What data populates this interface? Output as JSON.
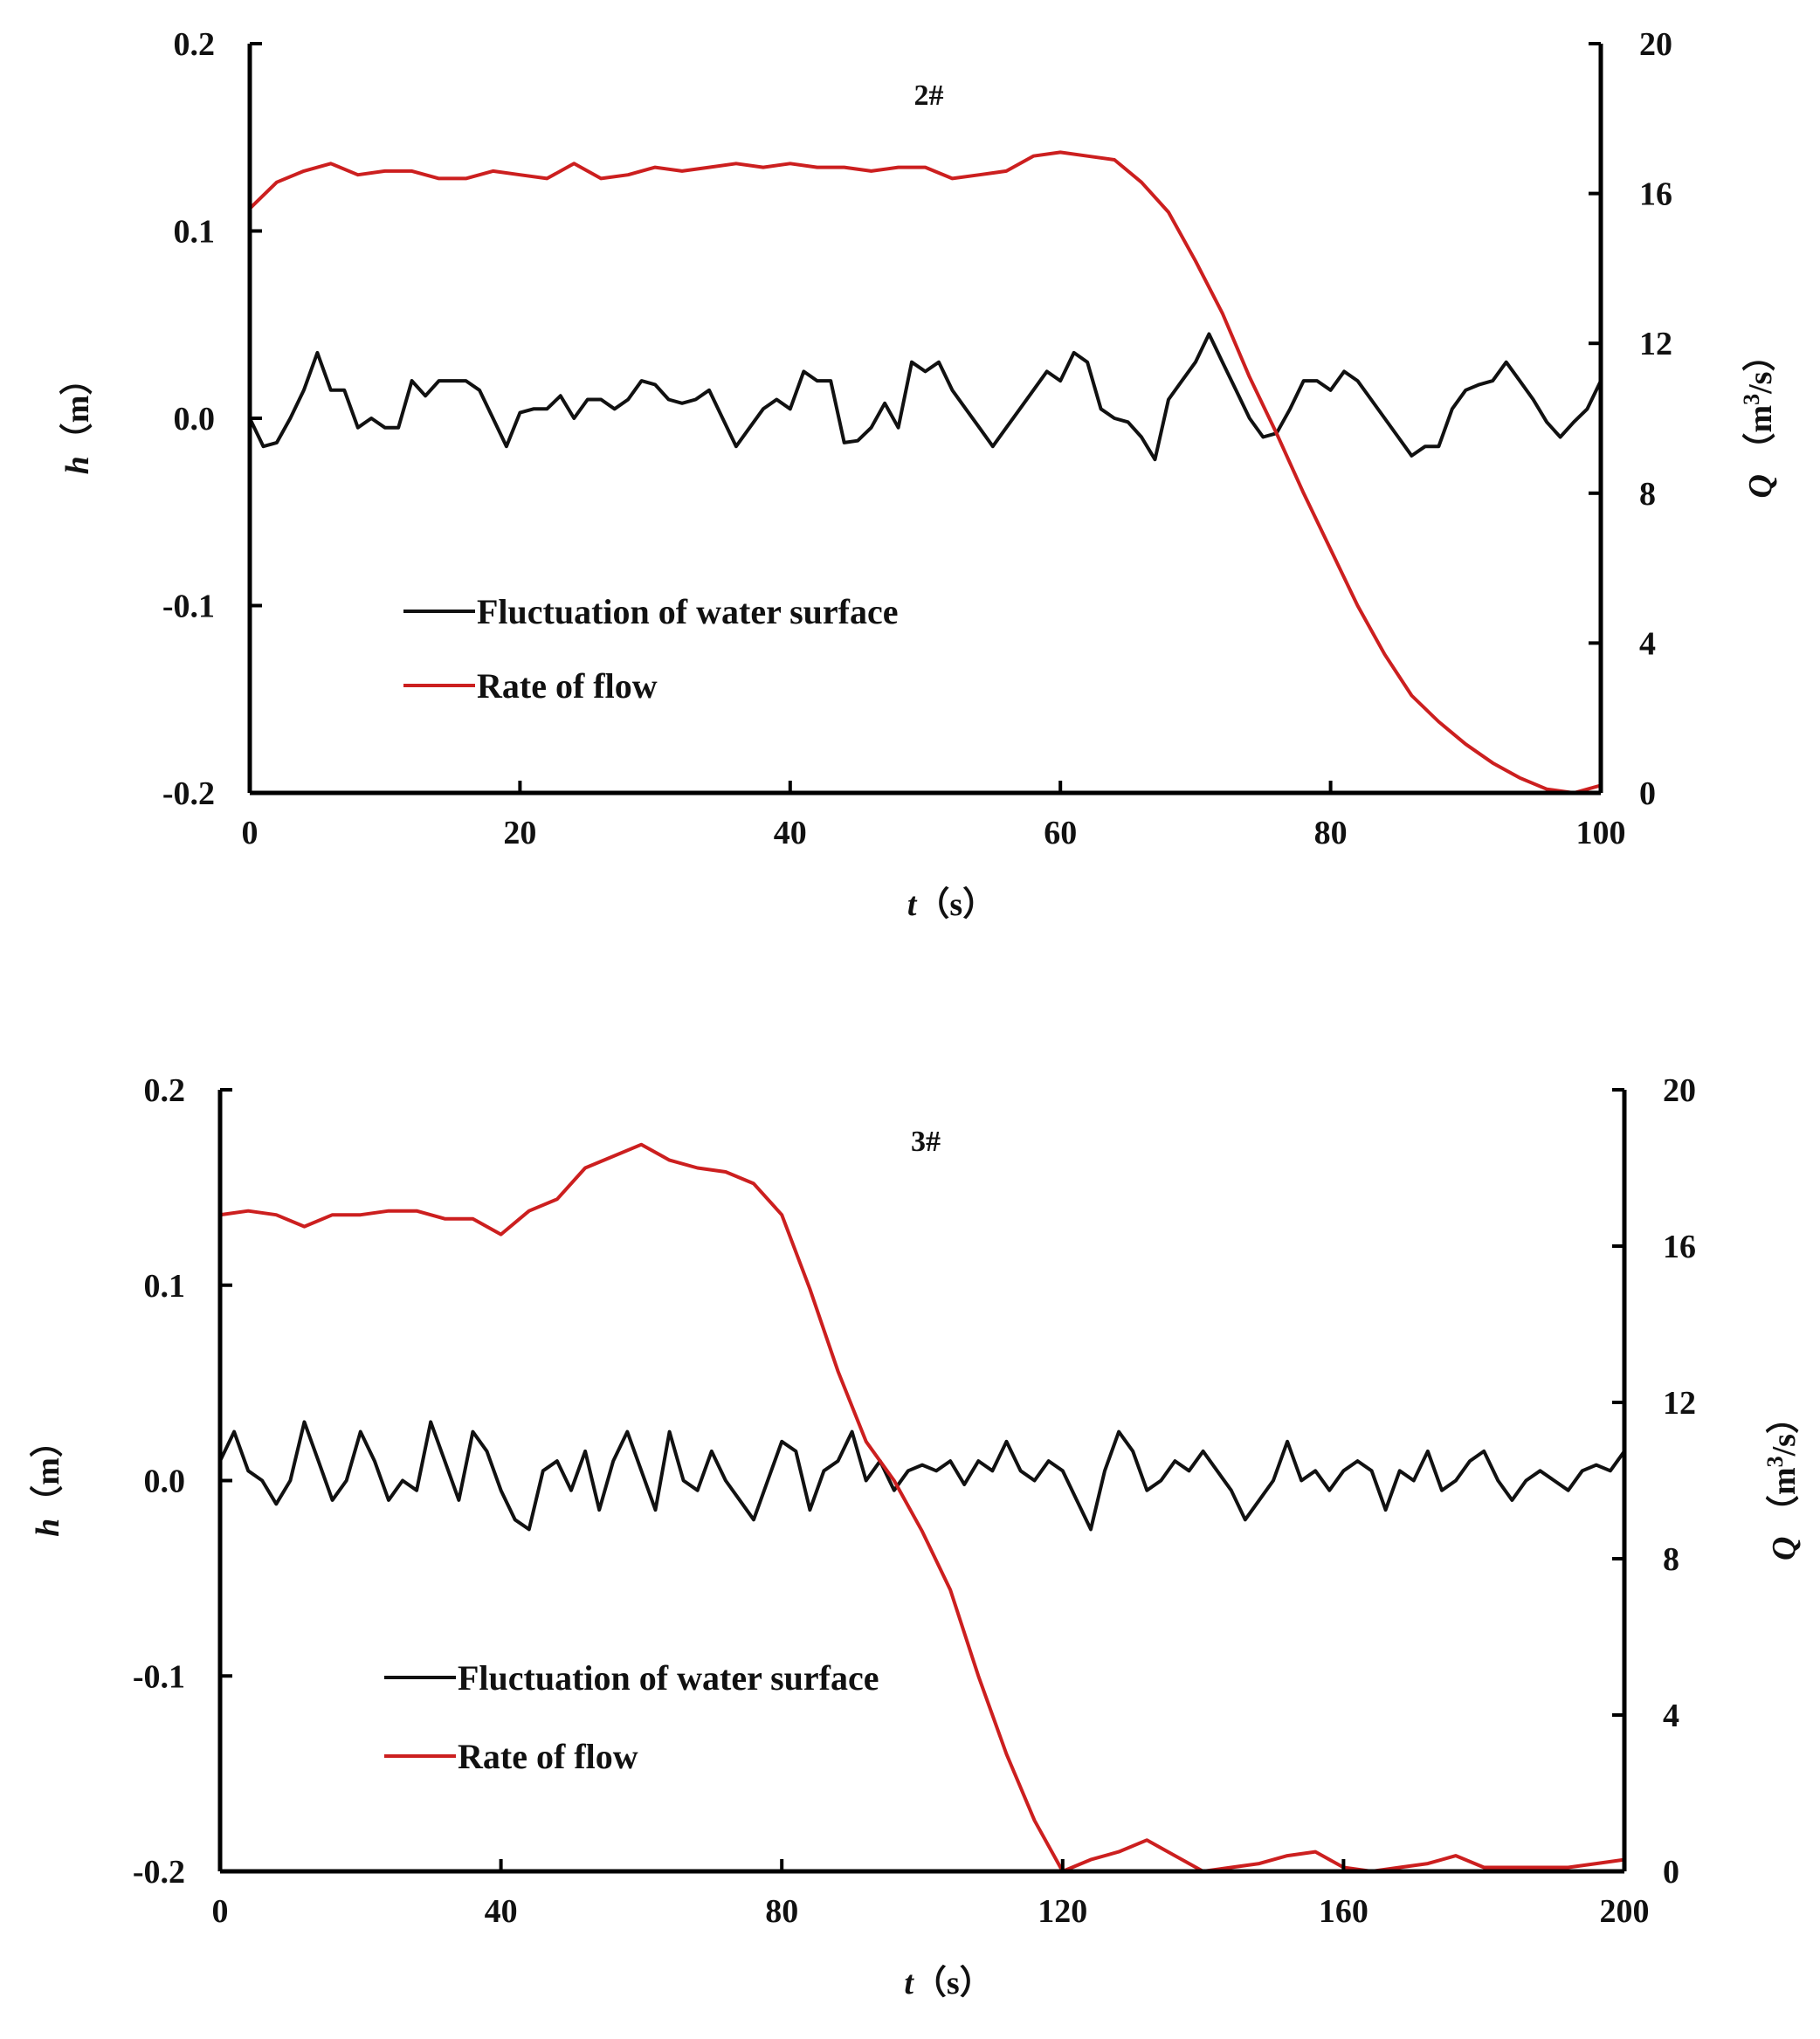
{
  "colors": {
    "water_surface": "#111111",
    "rate_of_flow": "#cc1f1f",
    "axis": "#000000"
  },
  "chart_data": [
    {
      "type": "line",
      "panel_label": "2#",
      "xlabel": {
        "var": "t",
        "unit": "（s）"
      },
      "ylabel_left": {
        "var": "h",
        "unit": "（m）"
      },
      "ylabel_right": {
        "var": "Q",
        "unit_pre": "（m",
        "unit_sup": "3",
        "unit_post": "/s）"
      },
      "xlim": [
        0,
        100
      ],
      "ylim_left": [
        -0.2,
        0.2
      ],
      "ylim_right": [
        0,
        20
      ],
      "xticks": [
        0,
        20,
        40,
        60,
        80,
        100
      ],
      "xtick_labels": [
        "0",
        "20",
        "40",
        "60",
        "80",
        "100"
      ],
      "yticks_left": [
        -0.2,
        -0.1,
        0.0,
        0.1,
        0.2
      ],
      "ytick_labels_left": [
        "-0.2",
        "-0.1",
        "0.0",
        "0.1",
        "0.2"
      ],
      "yticks_right": [
        0,
        4,
        8,
        12,
        16,
        20
      ],
      "ytick_labels_right": [
        "0",
        "4",
        "8",
        "12",
        "16",
        "20"
      ],
      "grid": false,
      "legend_placement": "lower-left",
      "series": [
        {
          "name": "Fluctuation of water surface",
          "axis": "left",
          "x": [
            0,
            1,
            2,
            3,
            4,
            5,
            6,
            7,
            8,
            9,
            10,
            11,
            12,
            13,
            14,
            15,
            16,
            17,
            18,
            19,
            20,
            21,
            22,
            23,
            24,
            25,
            26,
            27,
            28,
            29,
            30,
            31,
            32,
            33,
            34,
            35,
            36,
            37,
            38,
            39,
            40,
            41,
            42,
            43,
            44,
            45,
            46,
            47,
            48,
            49,
            50,
            51,
            52,
            53,
            54,
            55,
            56,
            57,
            58,
            59,
            60,
            61,
            62,
            63,
            64,
            65,
            66,
            67,
            68,
            69,
            70,
            71,
            72,
            73,
            74,
            75,
            76,
            77,
            78,
            79,
            80,
            81,
            82,
            83,
            84,
            85,
            86,
            87,
            88,
            89,
            90,
            91,
            92,
            93,
            94,
            95,
            96,
            97,
            98,
            99,
            100
          ],
          "values": [
            0.0,
            -0.015,
            -0.013,
            0.0,
            0.015,
            0.035,
            0.015,
            0.015,
            -0.005,
            0.0,
            -0.005,
            -0.005,
            0.02,
            0.012,
            0.02,
            0.02,
            0.02,
            0.015,
            0.0,
            -0.015,
            0.003,
            0.005,
            0.005,
            0.012,
            0.0,
            0.01,
            0.01,
            0.005,
            0.01,
            0.02,
            0.018,
            0.01,
            0.008,
            0.01,
            0.015,
            0.0,
            -0.015,
            -0.005,
            0.005,
            0.01,
            0.005,
            0.025,
            0.02,
            0.02,
            -0.013,
            -0.012,
            -0.005,
            0.008,
            -0.005,
            0.03,
            0.025,
            0.03,
            0.015,
            0.005,
            -0.005,
            -0.015,
            -0.005,
            0.005,
            0.015,
            0.025,
            0.02,
            0.035,
            0.03,
            0.005,
            0.0,
            -0.002,
            -0.01,
            -0.022,
            0.01,
            0.02,
            0.03,
            0.045,
            0.03,
            0.015,
            0.0,
            -0.01,
            -0.008,
            0.005,
            0.02,
            0.02,
            0.015,
            0.025,
            0.02,
            0.01,
            0.0,
            -0.01,
            -0.02,
            -0.015,
            -0.015,
            0.005,
            0.015,
            0.018,
            0.02,
            0.03,
            0.02,
            0.01,
            -0.002,
            -0.01,
            -0.002,
            0.005,
            0.02
          ]
        },
        {
          "name": "Rate of flow",
          "axis": "right",
          "x": [
            0,
            2,
            4,
            6,
            8,
            10,
            12,
            14,
            16,
            18,
            20,
            22,
            24,
            26,
            28,
            30,
            32,
            34,
            36,
            38,
            40,
            42,
            44,
            46,
            48,
            50,
            52,
            54,
            56,
            58,
            60,
            62,
            64,
            66,
            68,
            70,
            72,
            74,
            76,
            78,
            80,
            82,
            84,
            86,
            88,
            90,
            92,
            94,
            96,
            98,
            100
          ],
          "values": [
            15.6,
            16.3,
            16.6,
            16.8,
            16.5,
            16.6,
            16.6,
            16.4,
            16.4,
            16.6,
            16.5,
            16.4,
            16.8,
            16.4,
            16.5,
            16.7,
            16.6,
            16.7,
            16.8,
            16.7,
            16.8,
            16.7,
            16.7,
            16.6,
            16.7,
            16.7,
            16.4,
            16.5,
            16.6,
            17.0,
            17.1,
            17.0,
            16.9,
            16.3,
            15.5,
            14.2,
            12.8,
            11.1,
            9.6,
            8.0,
            6.5,
            5.0,
            3.7,
            2.6,
            1.9,
            1.3,
            0.8,
            0.4,
            0.1,
            0.0,
            0.2
          ]
        }
      ]
    },
    {
      "type": "line",
      "panel_label": "3#",
      "xlabel": {
        "var": "t",
        "unit": "（s）"
      },
      "ylabel_left": {
        "var": "h",
        "unit": "（m）"
      },
      "ylabel_right": {
        "var": "Q",
        "unit_pre": "（m",
        "unit_sup": "3",
        "unit_post": "/s）"
      },
      "xlim": [
        0,
        200
      ],
      "ylim_left": [
        -0.2,
        0.2
      ],
      "ylim_right": [
        0,
        20
      ],
      "xticks": [
        0,
        40,
        80,
        120,
        160,
        200
      ],
      "xtick_labels": [
        "0",
        "40",
        "80",
        "120",
        "160",
        "200"
      ],
      "yticks_left": [
        -0.2,
        -0.1,
        0.0,
        0.1,
        0.2
      ],
      "ytick_labels_left": [
        "-0.2",
        "-0.1",
        "0.0",
        "0.1",
        "0.2"
      ],
      "yticks_right": [
        0,
        4,
        8,
        12,
        16,
        20
      ],
      "ytick_labels_right": [
        "0",
        "4",
        "8",
        "12",
        "16",
        "20"
      ],
      "grid": false,
      "legend_placement": "lower-left",
      "series": [
        {
          "name": "Fluctuation of water surface",
          "axis": "left",
          "x": [
            0,
            2,
            4,
            6,
            8,
            10,
            12,
            14,
            16,
            18,
            20,
            22,
            24,
            26,
            28,
            30,
            32,
            34,
            36,
            38,
            40,
            42,
            44,
            46,
            48,
            50,
            52,
            54,
            56,
            58,
            60,
            62,
            64,
            66,
            68,
            70,
            72,
            74,
            76,
            78,
            80,
            82,
            84,
            86,
            88,
            90,
            92,
            94,
            96,
            98,
            100,
            102,
            104,
            106,
            108,
            110,
            112,
            114,
            116,
            118,
            120,
            122,
            124,
            126,
            128,
            130,
            132,
            134,
            136,
            138,
            140,
            142,
            144,
            146,
            148,
            150,
            152,
            154,
            156,
            158,
            160,
            162,
            164,
            166,
            168,
            170,
            172,
            174,
            176,
            178,
            180,
            182,
            184,
            186,
            188,
            190,
            192,
            194,
            196,
            198,
            200
          ],
          "values": [
            0.01,
            0.025,
            0.005,
            0.0,
            -0.012,
            0.0,
            0.03,
            0.01,
            -0.01,
            0.0,
            0.025,
            0.01,
            -0.01,
            0.0,
            -0.005,
            0.03,
            0.01,
            -0.01,
            0.025,
            0.015,
            -0.005,
            -0.02,
            -0.025,
            0.005,
            0.01,
            -0.005,
            0.015,
            -0.015,
            0.01,
            0.025,
            0.005,
            -0.015,
            0.025,
            0.0,
            -0.005,
            0.015,
            0.0,
            -0.01,
            -0.02,
            0.0,
            0.02,
            0.015,
            -0.015,
            0.005,
            0.01,
            0.025,
            0.0,
            0.01,
            -0.005,
            0.005,
            0.008,
            0.005,
            0.01,
            -0.002,
            0.01,
            0.005,
            0.02,
            0.005,
            0.0,
            0.01,
            0.005,
            -0.01,
            -0.025,
            0.005,
            0.025,
            0.015,
            -0.005,
            0.0,
            0.01,
            0.005,
            0.015,
            0.005,
            -0.005,
            -0.02,
            -0.01,
            0.0,
            0.02,
            0.0,
            0.005,
            -0.005,
            0.005,
            0.01,
            0.005,
            -0.015,
            0.005,
            0.0,
            0.015,
            -0.005,
            0.0,
            0.01,
            0.015,
            0.0,
            -0.01,
            0.0,
            0.005,
            0.0,
            -0.005,
            0.005,
            0.008,
            0.005,
            0.015
          ]
        },
        {
          "name": "Rate of flow",
          "axis": "right",
          "x": [
            0,
            4,
            8,
            12,
            16,
            20,
            24,
            28,
            32,
            36,
            40,
            44,
            48,
            52,
            56,
            60,
            64,
            68,
            72,
            76,
            80,
            84,
            88,
            92,
            96,
            100,
            104,
            108,
            112,
            116,
            120,
            124,
            128,
            132,
            136,
            140,
            144,
            148,
            152,
            156,
            160,
            164,
            168,
            172,
            176,
            180,
            184,
            188,
            192,
            196,
            200
          ],
          "values": [
            16.8,
            16.9,
            16.8,
            16.5,
            16.8,
            16.8,
            16.9,
            16.9,
            16.7,
            16.7,
            16.3,
            16.9,
            17.2,
            18.0,
            18.3,
            18.6,
            18.2,
            18.0,
            17.9,
            17.6,
            16.8,
            14.9,
            12.8,
            11.0,
            10.0,
            8.7,
            7.2,
            5.0,
            3.0,
            1.3,
            0.0,
            0.3,
            0.5,
            0.8,
            0.4,
            0.0,
            0.1,
            0.2,
            0.4,
            0.5,
            0.1,
            0.0,
            0.1,
            0.2,
            0.4,
            0.1,
            0.1,
            0.1,
            0.1,
            0.2,
            0.3
          ]
        }
      ]
    }
  ]
}
